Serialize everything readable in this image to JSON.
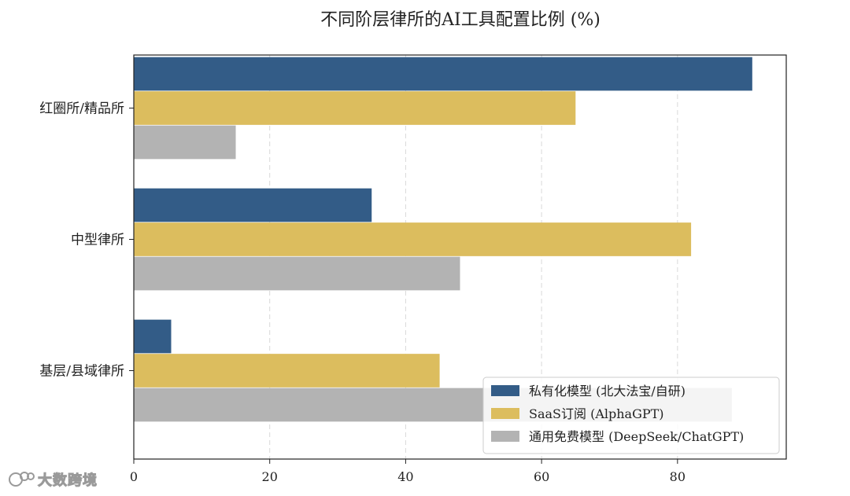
{
  "chart_data": {
    "type": "bar",
    "orientation": "horizontal",
    "title": "不同阶层律所的AI工具配置比例 (%)",
    "xlabel": "",
    "ylabel": "",
    "categories": [
      "红圈所/精品所",
      "中型律所",
      "基层/县域律所"
    ],
    "series": [
      {
        "name": "私有化模型 (北大法宝/自研)",
        "color": "#335c87",
        "values": [
          91,
          35,
          5.5
        ]
      },
      {
        "name": "SaaS订阅 (AlphaGPT)",
        "color": "#dcbd5e",
        "values": [
          65,
          82,
          45
        ]
      },
      {
        "name": "通用免费模型 (DeepSeek/ChatGPT)",
        "color": "#b3b3b3",
        "values": [
          15,
          48,
          88
        ]
      }
    ],
    "xlim": [
      0,
      96
    ],
    "xticks": [
      0,
      20,
      40,
      60,
      80
    ],
    "grid": "vertical-dashed",
    "legend_position": "lower-right"
  },
  "watermark": {
    "text": "大数跨境"
  }
}
